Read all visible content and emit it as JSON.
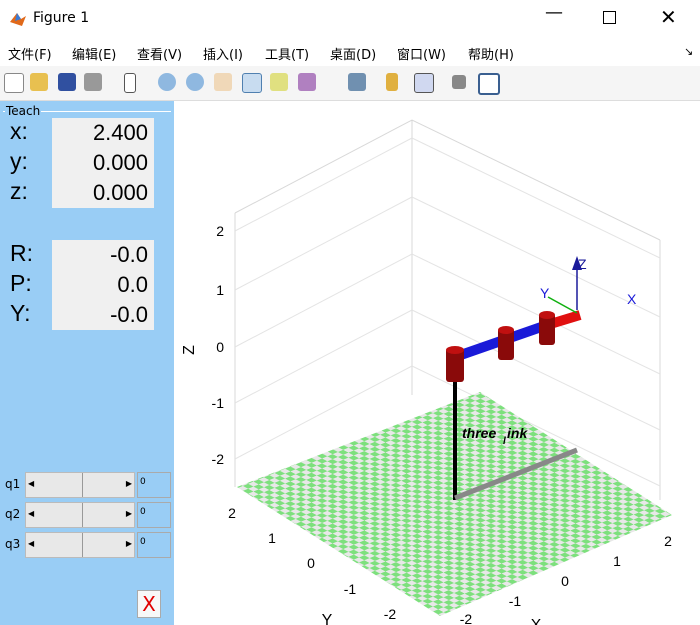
{
  "window": {
    "title": "Figure 1"
  },
  "menu": [
    "文件(F)",
    "编辑(E)",
    "查看(V)",
    "插入(I)",
    "工具(T)",
    "桌面(D)",
    "窗口(W)",
    "帮助(H)"
  ],
  "teach": {
    "title": "Teach",
    "position": [
      {
        "label": "x:",
        "value": "2.400"
      },
      {
        "label": "y:",
        "value": "0.000"
      },
      {
        "label": "z:",
        "value": "0.000"
      }
    ],
    "orientation": [
      {
        "label": "R:",
        "value": "-0.0"
      },
      {
        "label": "P:",
        "value": "0.0"
      },
      {
        "label": "Y:",
        "value": "-0.0"
      }
    ],
    "joints": [
      {
        "label": "q1",
        "value": "0"
      },
      {
        "label": "q2",
        "value": "0"
      },
      {
        "label": "q3",
        "value": "0"
      }
    ],
    "close": "X"
  },
  "plot": {
    "z_label": "Z",
    "y_label": "Y",
    "x_label": "X",
    "z_ticks": [
      2,
      1,
      0,
      -1,
      -2
    ],
    "y_ticks": [
      2,
      1,
      0,
      -1,
      -2
    ],
    "x_ticks": [
      -2,
      -1,
      0,
      1,
      2
    ],
    "robot_name": {
      "text": "three",
      "subscript": "l",
      "rest": "ink"
    },
    "frame_labels": {
      "z": "Z",
      "y": "Y",
      "x": "X"
    }
  }
}
